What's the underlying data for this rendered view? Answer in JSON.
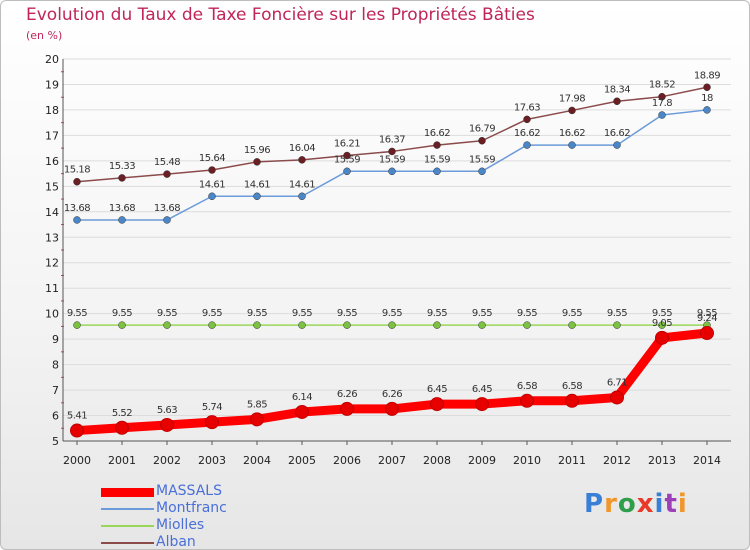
{
  "header": {
    "title": "Evolution du Taux de Taxe Foncière sur les Propriétés Bâties",
    "unit": "(en %)"
  },
  "brand": {
    "text": "Proxiti"
  },
  "chart_data": {
    "type": "line",
    "title": "Evolution du Taux de Taxe Foncière sur les Propriétés Bâties",
    "ylabel": "(en %)",
    "xlabel": "",
    "ylim": [
      5,
      20
    ],
    "yticks": [
      5,
      6,
      7,
      8,
      9,
      10,
      11,
      12,
      13,
      14,
      15,
      16,
      17,
      18,
      19,
      20
    ],
    "categories": [
      "2000",
      "2001",
      "2002",
      "2003",
      "2004",
      "2005",
      "2006",
      "2007",
      "2008",
      "2009",
      "2010",
      "2011",
      "2012",
      "2013",
      "2014"
    ],
    "series": [
      {
        "name": "MASSALS",
        "color": "#ff0000",
        "marker": "#e60000",
        "width": 9,
        "values": [
          5.41,
          5.52,
          5.63,
          5.74,
          5.85,
          6.14,
          6.26,
          6.26,
          6.45,
          6.45,
          6.58,
          6.58,
          6.71,
          9.05,
          9.24
        ],
        "labels": [
          "5.41",
          "5.52",
          "5.63",
          "5.74",
          "5.85",
          "6.14",
          "6.26",
          "6.26",
          "6.45",
          "6.45",
          "6.58",
          "6.58",
          "6.71",
          "9.05",
          "9.24"
        ]
      },
      {
        "name": "Montfranc",
        "color": "#6b9bd8",
        "marker": "#4a86c8",
        "width": 1.5,
        "values": [
          13.68,
          13.68,
          13.68,
          14.61,
          14.61,
          14.61,
          15.59,
          15.59,
          15.59,
          15.59,
          16.62,
          16.62,
          16.62,
          17.8,
          18
        ],
        "labels": [
          "13.68",
          "13.68",
          "13.68",
          "14.61",
          "14.61",
          "14.61",
          "15.59",
          "15.59",
          "15.59",
          "15.59",
          "16.62",
          "16.62",
          "16.62",
          "17.8",
          "18"
        ]
      },
      {
        "name": "Miolles",
        "color": "#9ad65a",
        "marker": "#7cc242",
        "width": 1.5,
        "values": [
          9.55,
          9.55,
          9.55,
          9.55,
          9.55,
          9.55,
          9.55,
          9.55,
          9.55,
          9.55,
          9.55,
          9.55,
          9.55,
          9.55,
          9.55
        ],
        "labels": [
          "9.55",
          "9.55",
          "9.55",
          "9.55",
          "9.55",
          "9.55",
          "9.55",
          "9.55",
          "9.55",
          "9.55",
          "9.55",
          "9.55",
          "9.55",
          "9.55",
          "9.55"
        ]
      },
      {
        "name": "Alban",
        "color": "#8b4b4b",
        "marker": "#6b1f24",
        "width": 1.5,
        "values": [
          15.18,
          15.33,
          15.48,
          15.64,
          15.96,
          16.04,
          16.21,
          16.37,
          16.62,
          16.79,
          17.63,
          17.98,
          18.34,
          18.52,
          18.89
        ],
        "labels": [
          "15.18",
          "15.33",
          "15.48",
          "15.64",
          "15.96",
          "16.04",
          "16.21",
          "16.37",
          "16.62",
          "16.79",
          "17.63",
          "17.98",
          "18.34",
          "18.52",
          "18.89"
        ]
      }
    ],
    "legend": "bottom-left"
  }
}
